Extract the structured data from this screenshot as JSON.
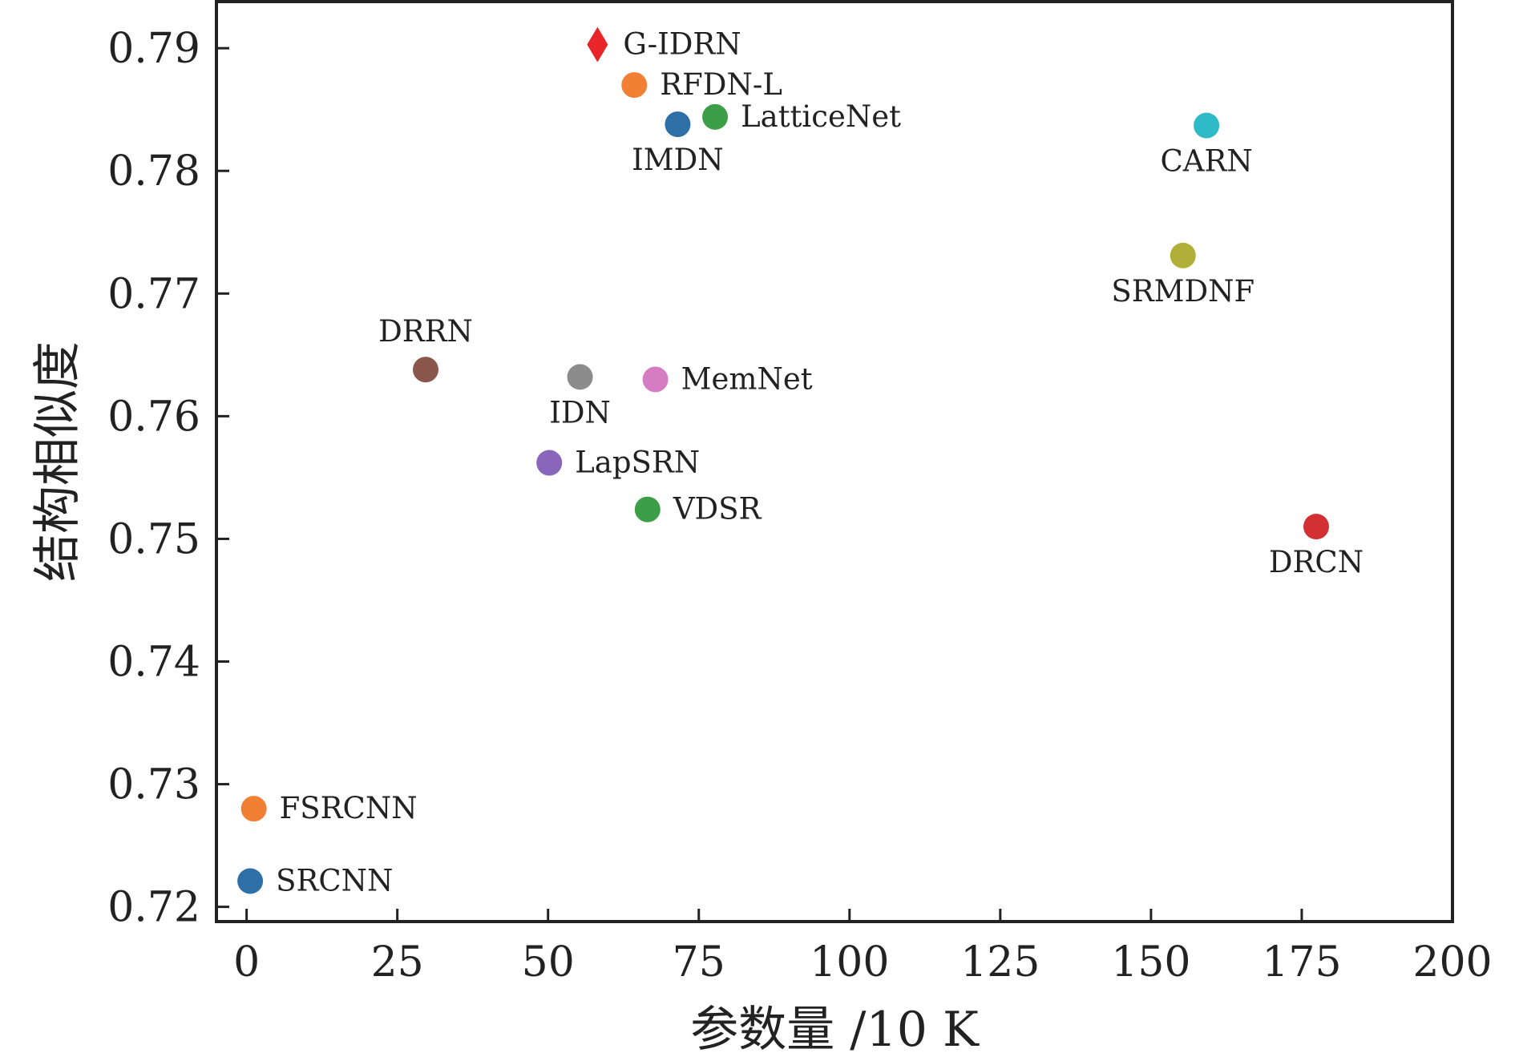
{
  "chart_data": {
    "type": "scatter",
    "title": "",
    "xlabel": "参数量 /10 K",
    "ylabel": "结构相似度",
    "xlim": [
      -5,
      200
    ],
    "ylim": [
      0.7188,
      0.7938
    ],
    "x_ticks": [
      "0",
      "25",
      "50",
      "75",
      "100",
      "125",
      "150",
      "175",
      "200"
    ],
    "y_ticks": [
      "0.72",
      "0.73",
      "0.74",
      "0.75",
      "0.76",
      "0.77",
      "0.78",
      "0.79"
    ],
    "grid": false,
    "legend": "none",
    "points": [
      {
        "name": "G-IDRN",
        "x": 58.2,
        "y": 0.7903,
        "color": "#e8262a",
        "marker": "diamond",
        "label_pos": "right"
      },
      {
        "name": "RFDN-L",
        "x": 64.3,
        "y": 0.787,
        "color": "#f28034",
        "marker": "circle",
        "label_pos": "right"
      },
      {
        "name": "LatticeNet",
        "x": 77.7,
        "y": 0.7844,
        "color": "#3d9e48",
        "marker": "circle",
        "label_pos": "right"
      },
      {
        "name": "IMDN",
        "x": 71.5,
        "y": 0.7838,
        "color": "#2f6fa8",
        "marker": "circle",
        "label_pos": "below"
      },
      {
        "name": "CARN",
        "x": 159.2,
        "y": 0.7837,
        "color": "#2fbac8",
        "marker": "circle",
        "label_pos": "below"
      },
      {
        "name": "SRMDNF",
        "x": 155.3,
        "y": 0.7731,
        "color": "#b0b038",
        "marker": "circle",
        "label_pos": "below"
      },
      {
        "name": "DRRN",
        "x": 29.7,
        "y": 0.7638,
        "color": "#8b564b",
        "marker": "circle",
        "label_pos": "above"
      },
      {
        "name": "IDN",
        "x": 55.3,
        "y": 0.7632,
        "color": "#8c8c8c",
        "marker": "circle",
        "label_pos": "below"
      },
      {
        "name": "MemNet",
        "x": 67.8,
        "y": 0.763,
        "color": "#d47dc2",
        "marker": "circle",
        "label_pos": "right"
      },
      {
        "name": "LapSRN",
        "x": 50.2,
        "y": 0.7562,
        "color": "#8866ba",
        "marker": "circle",
        "label_pos": "right"
      },
      {
        "name": "VDSR",
        "x": 66.5,
        "y": 0.7524,
        "color": "#3d9e48",
        "marker": "circle",
        "label_pos": "right"
      },
      {
        "name": "DRCN",
        "x": 177.4,
        "y": 0.751,
        "color": "#d33033",
        "marker": "circle",
        "label_pos": "below"
      },
      {
        "name": "FSRCNN",
        "x": 1.2,
        "y": 0.728,
        "color": "#f28034",
        "marker": "circle",
        "label_pos": "right"
      },
      {
        "name": "SRCNN",
        "x": 0.6,
        "y": 0.7221,
        "color": "#2f6fa8",
        "marker": "circle",
        "label_pos": "right"
      }
    ]
  }
}
